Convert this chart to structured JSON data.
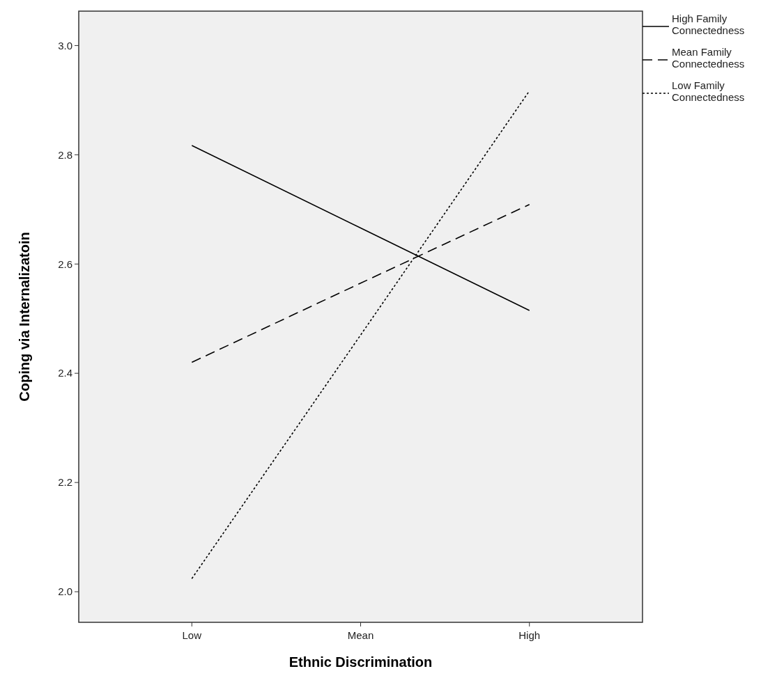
{
  "chart_data": {
    "type": "line",
    "xlabel": "Ethnic Discrimination",
    "ylabel": "Coping via  Internalizatoin",
    "categories": [
      "Low",
      "Mean",
      "High"
    ],
    "ylim": [
      1.944,
      3.063
    ],
    "yticks": [
      {
        "value": 2,
        "label": "2.0"
      },
      {
        "value": 2.2,
        "label": "2.2"
      },
      {
        "value": 2.4,
        "label": "2.4"
      },
      {
        "value": 2.6,
        "label": "2.6"
      },
      {
        "value": 2.8,
        "label": "2.8"
      },
      {
        "value": 3,
        "label": "3.0"
      }
    ],
    "grid": false,
    "legend": "top right",
    "marker": "none",
    "series": [
      {
        "name": "High Family Connectedness",
        "color": "#000000",
        "line_style": "solid",
        "values": [
          2.817,
          2.666,
          2.515
        ]
      },
      {
        "name": "Mean Family Connectedness",
        "color": "#000000",
        "line_style": "dashed",
        "values": [
          2.42,
          2.565,
          2.709
        ]
      },
      {
        "name": "Low Family Connectedness",
        "color": "#000000",
        "line_style": "dotted",
        "values": [
          2.024,
          2.47,
          2.917
        ]
      }
    ]
  }
}
